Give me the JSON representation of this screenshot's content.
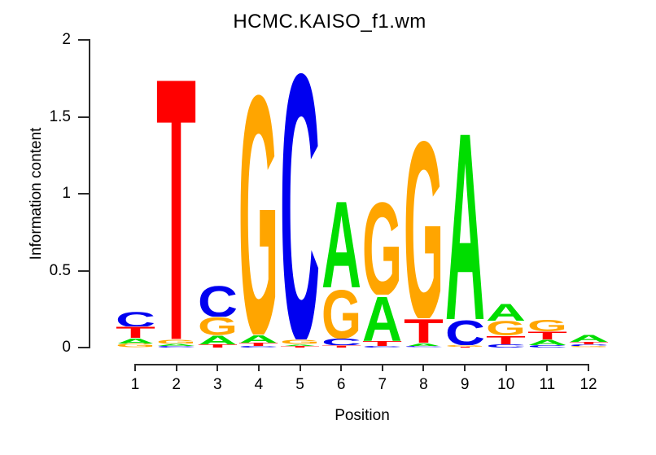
{
  "title": "HCMC.KAISO_f1.wm",
  "axes": {
    "y_label": "Information content",
    "x_label": "Position",
    "y_tick_labels": [
      "0",
      "0.5",
      "1",
      "1.5",
      "2"
    ],
    "y_tick_values": [
      0,
      0.5,
      1,
      1.5,
      2
    ],
    "x_tick_labels": [
      "1",
      "2",
      "3",
      "4",
      "5",
      "6",
      "7",
      "8",
      "9",
      "10",
      "11",
      "12"
    ]
  },
  "colors": {
    "axis": "#2a2a2a",
    "text": "#000000"
  },
  "chart_data": {
    "type": "bar",
    "variant": "sequence-logo-stacked-letters",
    "title": "HCMC.KAISO_f1.wm",
    "xlabel": "Position",
    "ylabel": "Information content",
    "ylim": [
      0,
      2
    ],
    "y_ticks": [
      0,
      0.5,
      1,
      1.5,
      2
    ],
    "positions": [
      1,
      2,
      3,
      4,
      5,
      6,
      7,
      8,
      9,
      10,
      11,
      12
    ],
    "letter_colors": {
      "A": "#00DD00",
      "C": "#0000F0",
      "G": "#FFA500",
      "T": "#FF0000"
    },
    "note": "letters listed bottom-to-top per position; ic = information content in bits",
    "stacks": [
      {
        "position": 1,
        "letters": [
          {
            "base": "G",
            "ic": 0.025
          },
          {
            "base": "A",
            "ic": 0.035
          },
          {
            "base": "T",
            "ic": 0.075
          },
          {
            "base": "C",
            "ic": 0.105
          }
        ]
      },
      {
        "position": 2,
        "letters": [
          {
            "base": "C",
            "ic": 0.01
          },
          {
            "base": "A",
            "ic": 0.015
          },
          {
            "base": "G",
            "ic": 0.03
          },
          {
            "base": "T",
            "ic": 1.78
          }
        ]
      },
      {
        "position": 3,
        "letters": [
          {
            "base": "T",
            "ic": 0.02
          },
          {
            "base": "A",
            "ic": 0.06
          },
          {
            "base": "G",
            "ic": 0.12
          },
          {
            "base": "C",
            "ic": 0.21
          }
        ]
      },
      {
        "position": 4,
        "letters": [
          {
            "base": "C",
            "ic": 0.01
          },
          {
            "base": "T",
            "ic": 0.02
          },
          {
            "base": "A",
            "ic": 0.055
          },
          {
            "base": "G",
            "ic": 1.63
          }
        ]
      },
      {
        "position": 5,
        "letters": [
          {
            "base": "T",
            "ic": 0.01
          },
          {
            "base": "A",
            "ic": 0.012
          },
          {
            "base": "G",
            "ic": 0.03
          },
          {
            "base": "C",
            "ic": 1.81
          }
        ]
      },
      {
        "position": 6,
        "letters": [
          {
            "base": "T",
            "ic": 0.015
          },
          {
            "base": "C",
            "ic": 0.045
          },
          {
            "base": "G",
            "ic": 0.33
          },
          {
            "base": "A",
            "ic": 0.59
          }
        ]
      },
      {
        "position": 7,
        "letters": [
          {
            "base": "C",
            "ic": 0.01
          },
          {
            "base": "T",
            "ic": 0.032
          },
          {
            "base": "A",
            "ic": 0.3
          },
          {
            "base": "G",
            "ic": 0.633
          }
        ]
      },
      {
        "position": 8,
        "letters": [
          {
            "base": "C",
            "ic": 0.008
          },
          {
            "base": "A",
            "ic": 0.02
          },
          {
            "base": "T",
            "ic": 0.16
          },
          {
            "base": "G",
            "ic": 1.21
          }
        ]
      },
      {
        "position": 9,
        "letters": [
          {
            "base": "T",
            "ic": 0.005
          },
          {
            "base": "G",
            "ic": 0.01
          },
          {
            "base": "C",
            "ic": 0.17
          },
          {
            "base": "A",
            "ic": 1.27
          }
        ]
      },
      {
        "position": 10,
        "letters": [
          {
            "base": "C",
            "ic": 0.021
          },
          {
            "base": "T",
            "ic": 0.058
          },
          {
            "base": "G",
            "ic": 0.095
          },
          {
            "base": "A",
            "ic": 0.116
          }
        ]
      },
      {
        "position": 11,
        "letters": [
          {
            "base": "C",
            "ic": 0.016
          },
          {
            "base": "A",
            "ic": 0.037
          },
          {
            "base": "T",
            "ic": 0.053
          },
          {
            "base": "G",
            "ic": 0.079
          }
        ]
      },
      {
        "position": 12,
        "letters": [
          {
            "base": "G",
            "ic": 0.008
          },
          {
            "base": "C",
            "ic": 0.013
          },
          {
            "base": "T",
            "ic": 0.016
          },
          {
            "base": "A",
            "ic": 0.048
          }
        ]
      }
    ]
  }
}
